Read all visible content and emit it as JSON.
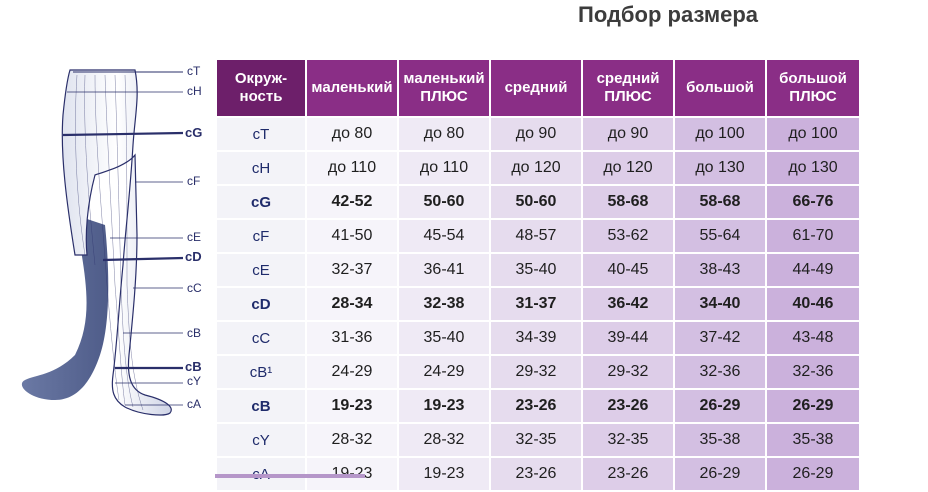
{
  "title": "Подбор размера",
  "table": {
    "header_first": "Окруж-\nность",
    "headers": [
      "маленький",
      "маленький\nПЛЮС",
      "средний",
      "средний\nПЛЮС",
      "большой",
      "большой\nПЛЮС"
    ],
    "rows": [
      {
        "label": "cT",
        "bold": false,
        "values": [
          "до 80",
          "до 80",
          "до 90",
          "до 90",
          "до 100",
          "до 100"
        ]
      },
      {
        "label": "cH",
        "bold": false,
        "values": [
          "до 110",
          "до 110",
          "до 120",
          "до 120",
          "до 130",
          "до 130"
        ]
      },
      {
        "label": "cG",
        "bold": true,
        "values": [
          "42-52",
          "50-60",
          "50-60",
          "58-68",
          "58-68",
          "66-76"
        ]
      },
      {
        "label": "cF",
        "bold": false,
        "values": [
          "41-50",
          "45-54",
          "48-57",
          "53-62",
          "55-64",
          "61-70"
        ]
      },
      {
        "label": "cE",
        "bold": false,
        "values": [
          "32-37",
          "36-41",
          "35-40",
          "40-45",
          "38-43",
          "44-49"
        ]
      },
      {
        "label": "cD",
        "bold": true,
        "values": [
          "28-34",
          "32-38",
          "31-37",
          "36-42",
          "34-40",
          "40-46"
        ]
      },
      {
        "label": "cC",
        "bold": false,
        "values": [
          "31-36",
          "35-40",
          "34-39",
          "39-44",
          "37-42",
          "43-48"
        ]
      },
      {
        "label": "cB¹",
        "bold": false,
        "values": [
          "24-29",
          "24-29",
          "29-32",
          "29-32",
          "32-36",
          "32-36"
        ]
      },
      {
        "label": "cB",
        "bold": true,
        "values": [
          "19-23",
          "19-23",
          "23-26",
          "23-26",
          "26-29",
          "26-29"
        ]
      },
      {
        "label": "cY",
        "bold": false,
        "values": [
          "28-32",
          "28-32",
          "32-35",
          "32-35",
          "35-38",
          "35-38"
        ]
      },
      {
        "label": "cA",
        "bold": false,
        "values": [
          "19-23",
          "19-23",
          "23-26",
          "23-26",
          "26-29",
          "26-29"
        ]
      }
    ]
  },
  "figure_labels": [
    {
      "text": "cT",
      "bold": false
    },
    {
      "text": "cH",
      "bold": false
    },
    {
      "text": "cG",
      "bold": true
    },
    {
      "text": "cF",
      "bold": false
    },
    {
      "text": "cE",
      "bold": false
    },
    {
      "text": "cD",
      "bold": true
    },
    {
      "text": "cC",
      "bold": false
    },
    {
      "text": "cB",
      "bold": false
    },
    {
      "text": "cB",
      "bold": true
    },
    {
      "text": "cY",
      "bold": false
    },
    {
      "text": "cA",
      "bold": false
    }
  ]
}
